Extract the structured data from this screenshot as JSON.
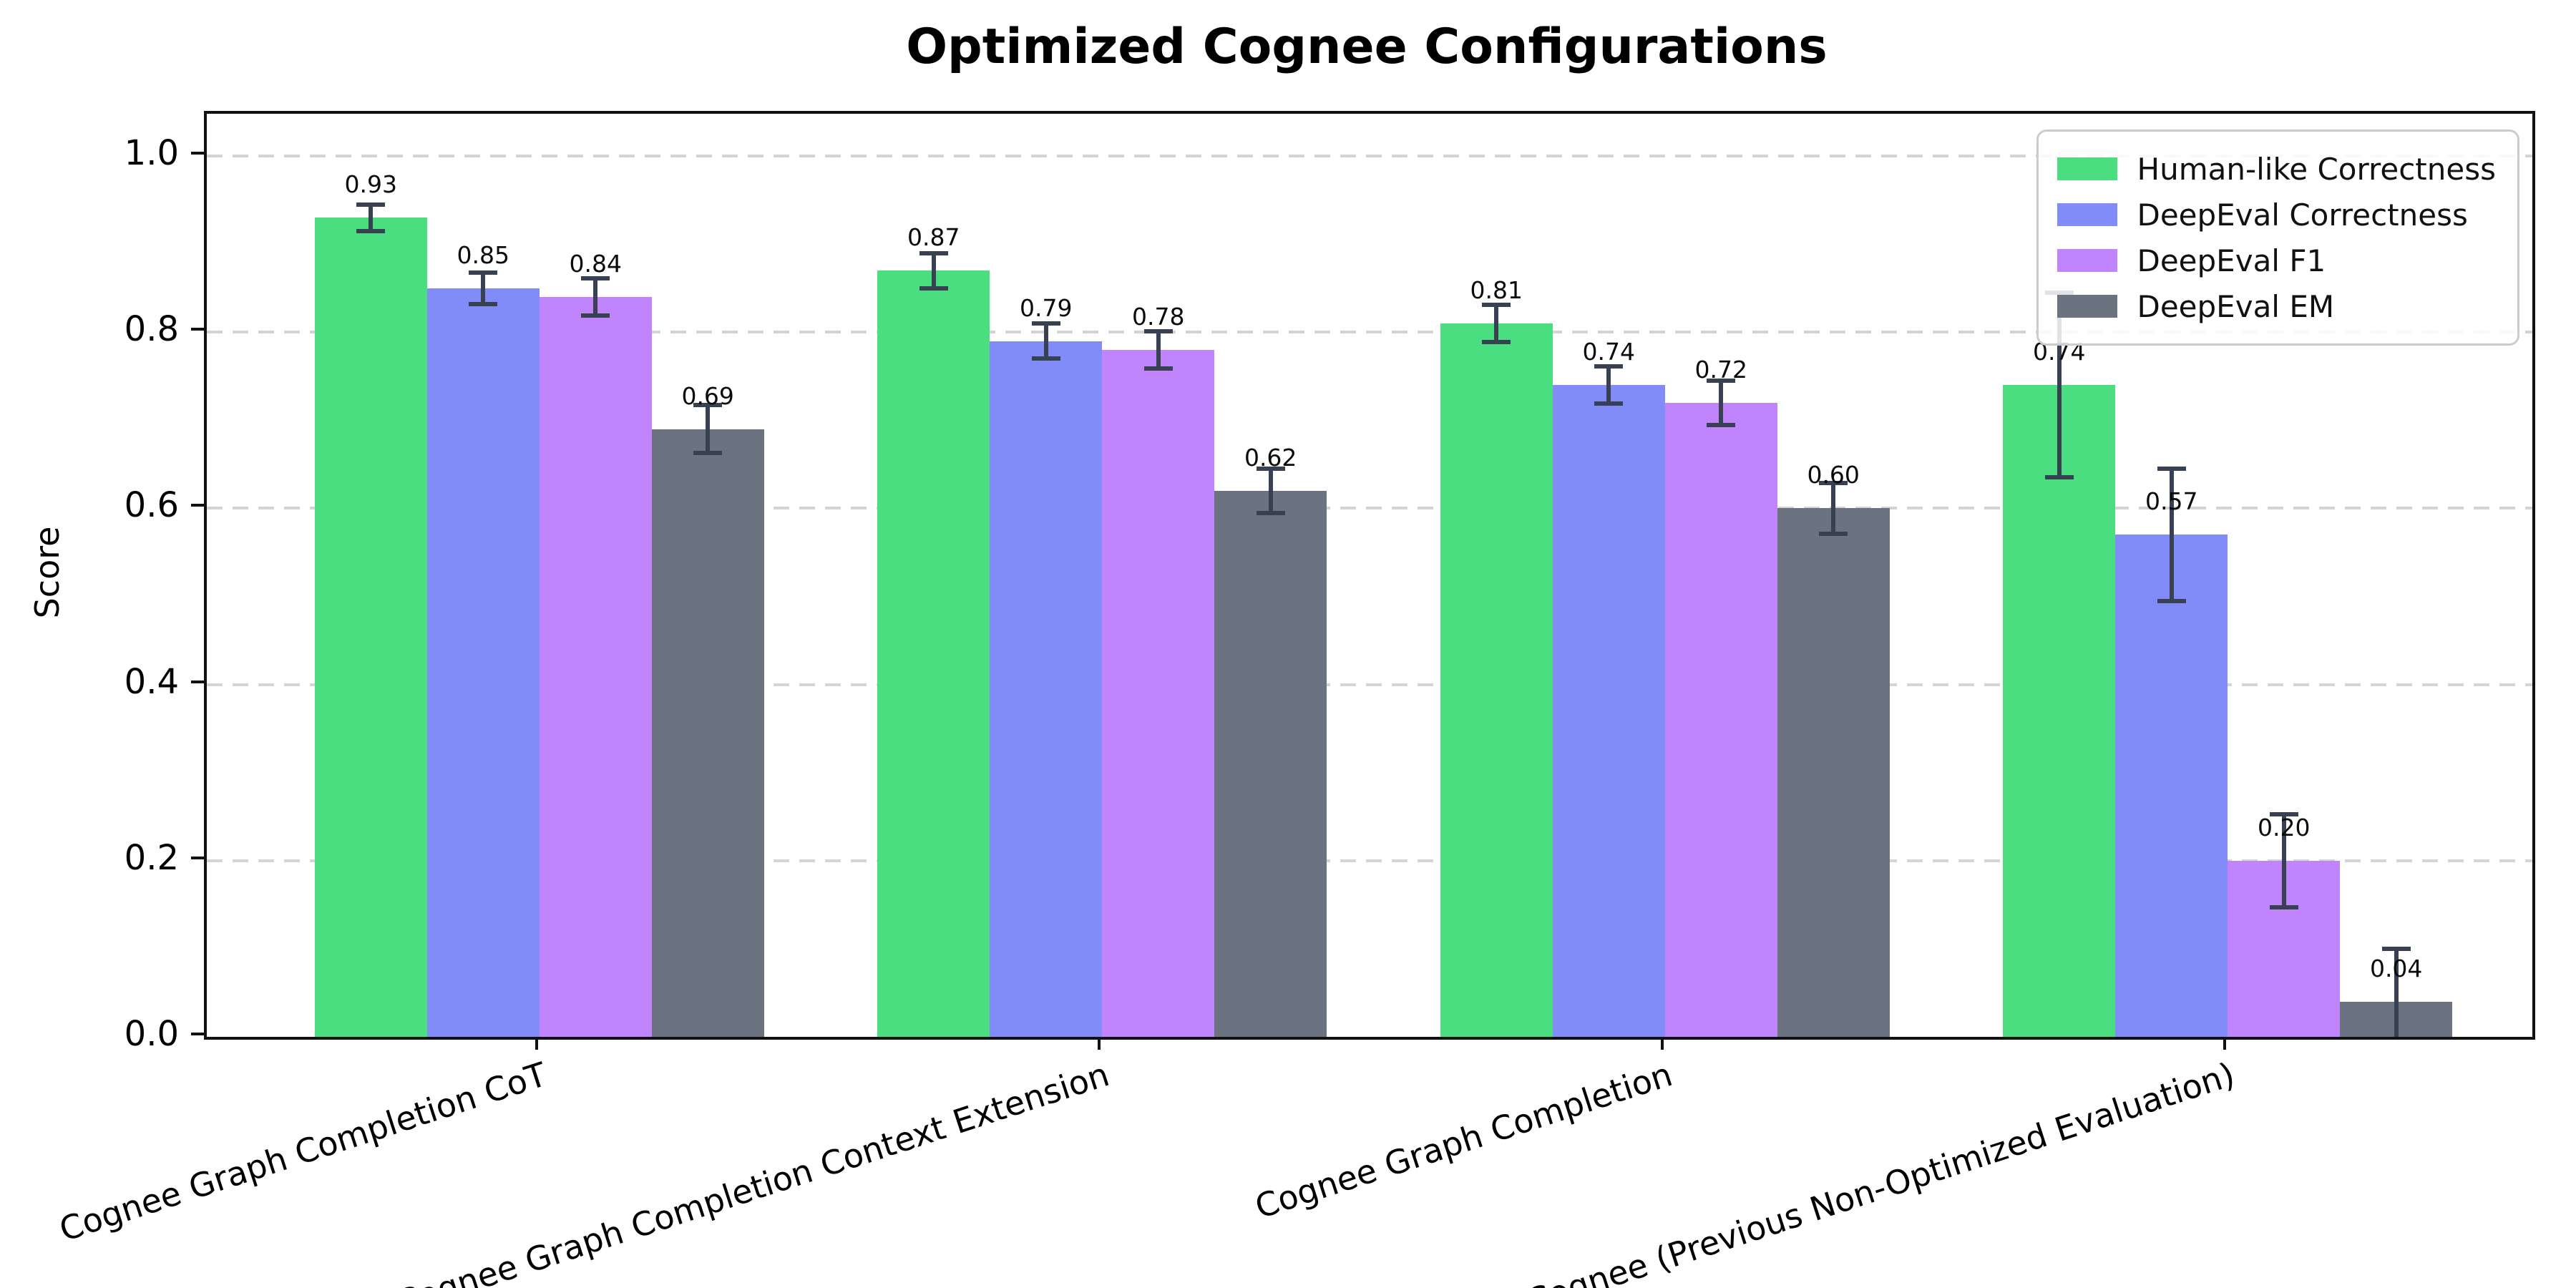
{
  "chart_data": {
    "type": "bar",
    "title": "Optimized Cognee Configurations",
    "ylabel": "Score",
    "xlabel": "",
    "ylim": [
      0,
      1.048
    ],
    "yticks": [
      "0.0",
      "0.2",
      "0.4",
      "0.6",
      "0.8",
      "1.0"
    ],
    "grid": "horizontal-dashed",
    "legend_position": "upper right",
    "error_bars": true,
    "categories": [
      "Cognee Graph Completion CoT",
      "Cognee Graph Completion Context Extension",
      "Cognee Graph Completion",
      "Cognee (Previous Non-Optimized Evaluation)"
    ],
    "series": [
      {
        "name": "Human-like Correctness",
        "color": "#4ade80",
        "values": [
          0.93,
          0.87,
          0.81,
          0.74
        ],
        "labels": [
          "0.93",
          "0.87",
          "0.81",
          "0.74"
        ],
        "errors": [
          0.015,
          0.02,
          0.021,
          0.105
        ]
      },
      {
        "name": "DeepEval Correctness",
        "color": "#818cf8",
        "values": [
          0.85,
          0.79,
          0.74,
          0.57
        ],
        "labels": [
          "0.85",
          "0.79",
          "0.74",
          "0.57"
        ],
        "errors": [
          0.018,
          0.02,
          0.021,
          0.075
        ]
      },
      {
        "name": "DeepEval F1",
        "color": "#c084fc",
        "values": [
          0.84,
          0.78,
          0.72,
          0.2
        ],
        "labels": [
          "0.84",
          "0.78",
          "0.72",
          "0.20"
        ],
        "errors": [
          0.021,
          0.021,
          0.025,
          0.053
        ]
      },
      {
        "name": "DeepEval EM",
        "color": "#6b7280",
        "values": [
          0.69,
          0.62,
          0.6,
          0.04
        ],
        "labels": [
          "0.69",
          "0.62",
          "0.60",
          "0.04"
        ],
        "errors": [
          0.027,
          0.025,
          0.029,
          0.06
        ]
      }
    ],
    "colors": {
      "error_bar": "#374151",
      "grid": "#d4d4d4",
      "spine": "#111111",
      "background": "#ffffff",
      "text": "#000000"
    }
  }
}
